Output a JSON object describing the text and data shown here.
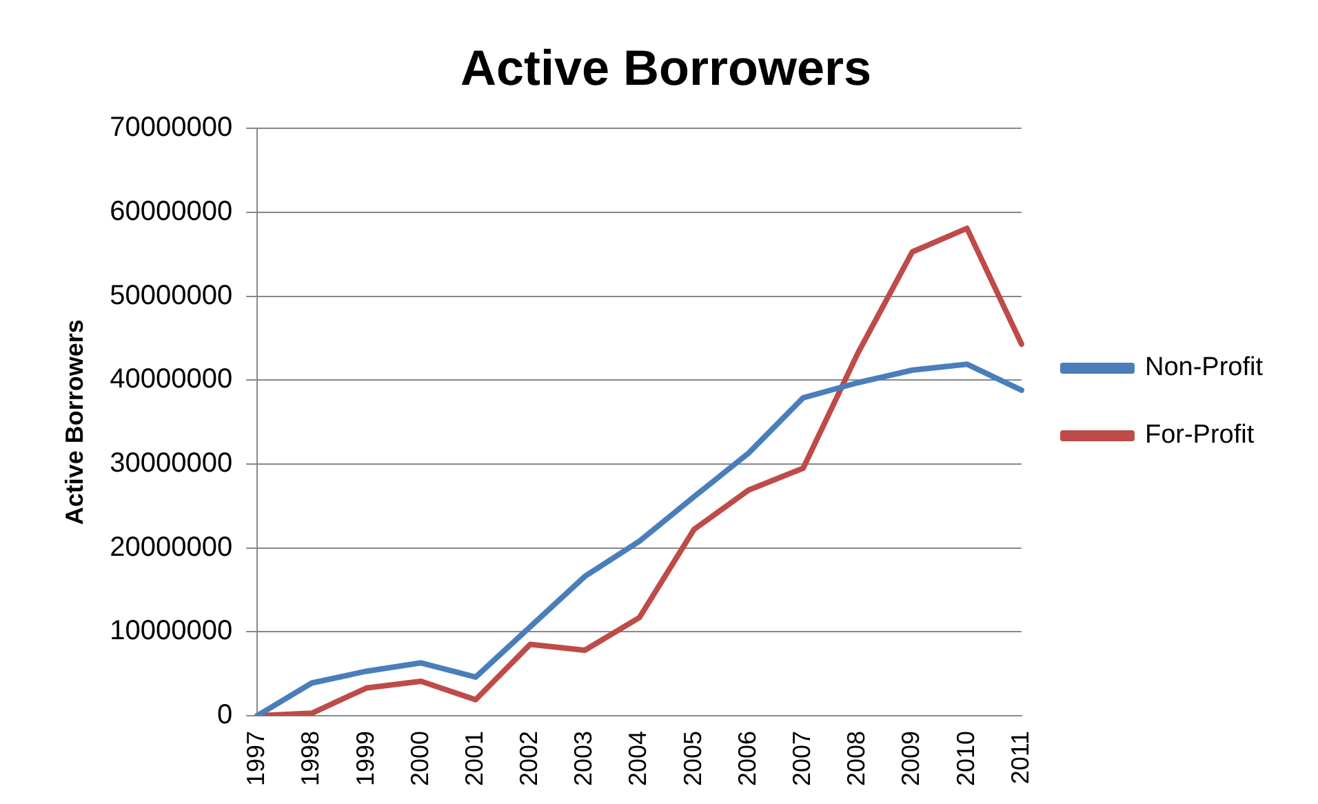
{
  "chart_data": {
    "type": "line",
    "title": "Active Borrowers",
    "ylabel": "Active Borrowers",
    "categories": [
      "1997",
      "1998",
      "1999",
      "2000",
      "2001",
      "2002",
      "2003",
      "2004",
      "2005",
      "2006",
      "2007",
      "2008",
      "2009",
      "2010",
      "2011"
    ],
    "series": [
      {
        "name": "Non-Profit",
        "color": "#4a7ebb",
        "values": [
          0,
          3900000,
          5300000,
          6300000,
          4600000,
          10600000,
          16600000,
          20800000,
          26100000,
          31300000,
          37900000,
          39700000,
          41200000,
          41900000,
          38800000
        ]
      },
      {
        "name": "For-Profit",
        "color": "#be4b48",
        "values": [
          0,
          300000,
          3300000,
          4100000,
          1900000,
          8500000,
          7800000,
          11700000,
          22200000,
          26900000,
          29500000,
          43200000,
          55300000,
          58100000,
          44300000
        ]
      }
    ],
    "ylim": [
      0,
      70000000
    ],
    "yticks": [
      0,
      10000000,
      20000000,
      30000000,
      40000000,
      50000000,
      60000000,
      70000000
    ],
    "grid": "y",
    "legend": "right",
    "marker": "none",
    "line_style": "solid"
  }
}
